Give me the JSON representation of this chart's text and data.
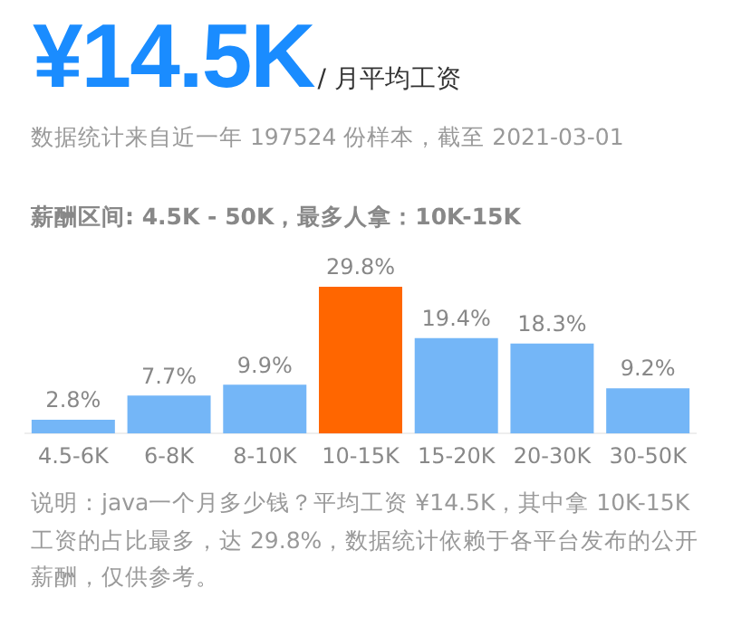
{
  "chart_data": {
    "type": "bar",
    "title": "¥14.5K",
    "subtitle": "/ 月平均工资",
    "annotations": [
      "数据统计来自近一年 197524 份样本，截至 2021-03-01",
      "薪酬区间: 4.5K - 50K，最多人拿：10K-15K",
      "说明：java一个月多少钱？平均工资 ¥14.5K，其中拿 10K-15K 工资的占比最多，达 29.8%，数据统计依赖于各平台发布的公开薪酬，仅供参考。"
    ],
    "categories": [
      "4.5-6K",
      "6-8K",
      "8-10K",
      "10-15K",
      "15-20K",
      "20-30K",
      "30-50K"
    ],
    "values": [
      2.8,
      7.7,
      9.9,
      29.8,
      19.4,
      18.3,
      9.2
    ],
    "value_labels": [
      "2.8%",
      "7.7%",
      "9.9%",
      "29.8%",
      "19.4%",
      "18.3%",
      "9.2%"
    ],
    "colors": [
      "#74b6f7",
      "#74b6f7",
      "#74b6f7",
      "#ff6600",
      "#74b6f7",
      "#74b6f7",
      "#74b6f7"
    ],
    "grid": false,
    "legend": false
  }
}
